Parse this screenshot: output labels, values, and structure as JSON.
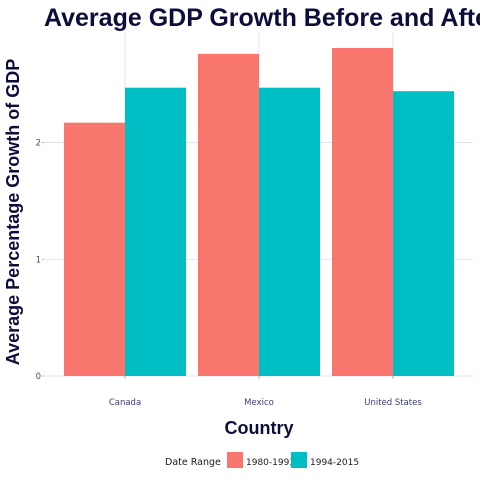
{
  "chart_data": {
    "type": "bar",
    "title": "Average GDP Growth Before and After",
    "xlabel": "Country",
    "ylabel": "Average Percentage Growth of GDP",
    "categories": [
      "Canada",
      "Mexico",
      "United States"
    ],
    "series": [
      {
        "name": "1980-1993",
        "values": [
          2.17,
          2.76,
          2.81
        ],
        "color": "#f8766d"
      },
      {
        "name": "1994-2015",
        "values": [
          2.47,
          2.47,
          2.44
        ],
        "color": "#00bfc4"
      }
    ],
    "yticks": [
      0,
      1,
      2
    ],
    "ylim": [
      0,
      2.81
    ],
    "grid": true,
    "legend": {
      "title": "Date Range",
      "position": "bottom"
    }
  }
}
